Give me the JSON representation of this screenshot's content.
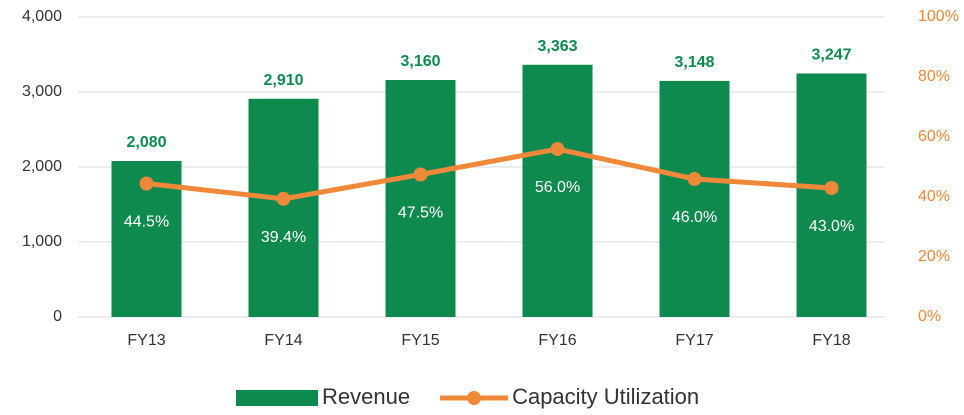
{
  "chart_data": {
    "type": "combo",
    "categories": [
      "FY13",
      "FY14",
      "FY15",
      "FY16",
      "FY17",
      "FY18"
    ],
    "series": [
      {
        "name": "Revenue",
        "type": "bar",
        "color": "#0e8a4f",
        "values": [
          2080,
          2910,
          3160,
          3363,
          3148,
          3247
        ],
        "value_labels": [
          "2,080",
          "2,910",
          "3,160",
          "3,363",
          "3,148",
          "3,247"
        ]
      },
      {
        "name": "Capacity Utilization",
        "type": "line",
        "axis": "y2",
        "color": "#f0883a",
        "values": [
          44.5,
          39.4,
          47.5,
          56.0,
          46.0,
          43.0
        ],
        "value_labels": [
          "44.5%",
          "39.4%",
          "47.5%",
          "56.0%",
          "46.0%",
          "43.0%"
        ]
      }
    ],
    "ylim": [
      0,
      4000
    ],
    "yticks": [
      0,
      {
        "value": 1000,
        "label": "1,000"
      },
      {
        "value": 2000,
        "label": "2,000"
      },
      {
        "value": 3000,
        "label": "3,000"
      },
      {
        "value": 4000,
        "label": "4,000"
      }
    ],
    "y2lim": [
      0,
      100
    ],
    "y2ticks": [
      {
        "value": 0,
        "label": "0%"
      },
      {
        "value": 20,
        "label": "20%"
      },
      {
        "value": 40,
        "label": "40%"
      },
      {
        "value": 60,
        "label": "60%"
      },
      {
        "value": 80,
        "label": "80%"
      },
      {
        "value": 100,
        "label": "100%"
      }
    ],
    "grid": true,
    "legend": "bottom"
  }
}
